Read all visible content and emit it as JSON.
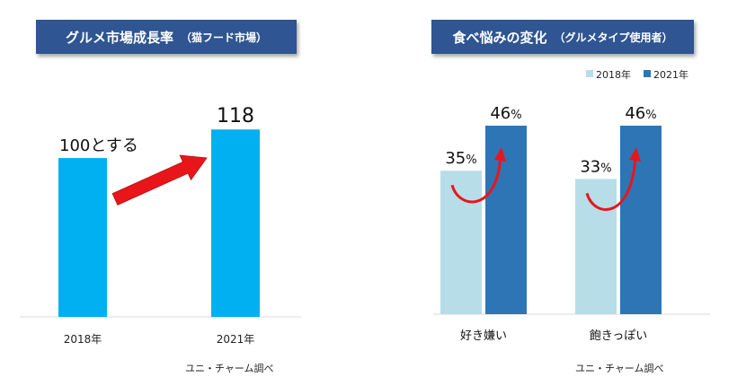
{
  "chart_data": [
    {
      "type": "bar",
      "title": "グルメ市場成長率",
      "subtitle": "（猫フード市場）",
      "categories": [
        "2018年",
        "2021年"
      ],
      "values": [
        100,
        118
      ],
      "data_labels": [
        "100とする",
        "118"
      ],
      "ylim": [
        0,
        130
      ],
      "grid": false,
      "colors": {
        "bar": "#00b0f0",
        "arrow": "#e8161b",
        "banner": "#2f5592"
      },
      "source": "ユニ・チャーム調べ"
    },
    {
      "type": "bar",
      "title": "食べ悩みの変化",
      "subtitle": "（グルメタイプ使用者）",
      "categories": [
        "好き嫌い",
        "飽きっぽい"
      ],
      "series": [
        {
          "name": "2018年",
          "values": [
            35,
            33
          ],
          "color": "#b7dde8"
        },
        {
          "name": "2021年",
          "values": [
            46,
            46
          ],
          "color": "#2e75b6"
        }
      ],
      "value_unit": "%",
      "ylim": [
        0,
        60
      ],
      "grid": false,
      "legend": "top-right",
      "colors": {
        "arrow": "#e8161b",
        "banner": "#2f5592"
      },
      "source": "ユニ・チャーム調べ"
    }
  ]
}
